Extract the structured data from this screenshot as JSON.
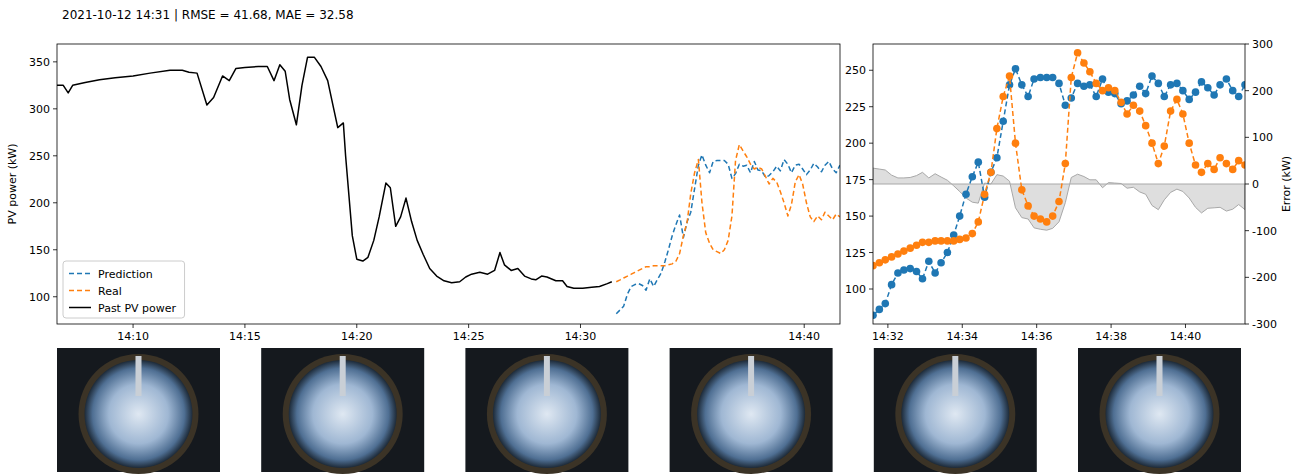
{
  "chart_data": [
    {
      "type": "line",
      "title": "2021-10-12 14:31 | RMSE = 41.68, MAE = 32.58",
      "y_label": "PV power (kW)",
      "xlim": [
        6.6,
        41.6
      ],
      "xticks": [
        {
          "value": 10,
          "label": "14:10"
        },
        {
          "value": 15,
          "label": "14:15"
        },
        {
          "value": 20,
          "label": "14:20"
        },
        {
          "value": 25,
          "label": "14:25"
        },
        {
          "value": 30,
          "label": "14:30"
        },
        {
          "value": 40,
          "label": "14:40"
        }
      ],
      "ylim": [
        71,
        369
      ],
      "yticks": [
        100,
        150,
        200,
        250,
        300,
        350
      ],
      "legend": "lower left",
      "x": [
        31.6,
        31.77,
        31.93,
        32.1,
        32.27,
        32.43,
        32.6,
        32.77,
        32.93,
        33.1,
        33.27,
        33.43,
        33.6,
        33.77,
        33.93,
        34.1,
        34.27,
        34.43,
        34.6,
        34.77,
        34.93,
        35.1,
        35.27,
        35.43,
        35.6,
        35.77,
        35.93,
        36.1,
        36.27,
        36.43,
        36.6,
        36.77,
        36.93,
        37.1,
        37.27,
        37.43,
        37.6,
        37.77,
        37.93,
        38.1,
        38.27,
        38.43,
        38.6,
        38.77,
        38.93,
        39.1,
        39.27,
        39.43,
        39.6,
        39.77,
        39.93,
        40.1,
        40.27,
        40.43,
        40.6,
        40.77,
        40.93,
        41.1,
        41.27,
        41.43,
        41.6
      ],
      "series": [
        {
          "name": "Prediction",
          "color": "#1f77b4",
          "line_style": "dashed",
          "values": [
            82,
            86,
            90,
            103,
            111,
            113,
            114,
            112,
            107,
            119,
            111,
            118,
            125,
            137,
            150,
            165,
            177,
            187,
            163,
            180,
            190,
            215,
            240,
            251,
            240,
            232,
            244,
            245,
            245,
            245,
            241,
            226,
            231,
            241,
            239,
            240,
            232,
            244,
            235,
            234,
            227,
            229,
            233,
            239,
            234,
            246,
            241,
            232,
            240,
            241,
            236,
            230,
            235,
            242,
            238,
            233,
            240,
            244,
            236,
            232,
            240
          ]
        },
        {
          "name": "Real",
          "color": "#ff7f0e",
          "line_style": "dashed",
          "values": [
            116,
            118,
            120,
            122,
            124,
            126,
            128,
            130,
            132,
            132,
            133,
            133,
            133,
            133,
            134,
            135,
            138,
            146,
            165,
            180,
            210,
            232,
            246,
            200,
            168,
            157,
            150,
            148,
            146,
            150,
            160,
            186,
            245,
            262,
            255,
            249,
            241,
            236,
            238,
            236,
            228,
            220,
            226,
            222,
            212,
            200,
            186,
            198,
            222,
            230,
            220,
            200,
            185,
            180,
            186,
            182,
            190,
            186,
            182,
            188,
            185
          ]
        },
        {
          "name": "Past PV power",
          "color": "#000000",
          "line_style": "solid",
          "x": [
            6.6,
            6.88,
            7.1,
            7.3,
            7.86,
            8.5,
            9.2,
            10.0,
            10.76,
            11.65,
            12.2,
            12.5,
            12.86,
            13.3,
            13.6,
            14.0,
            14.3,
            14.6,
            15.0,
            15.6,
            16.0,
            16.3,
            16.56,
            16.8,
            17.0,
            17.3,
            17.55,
            17.8,
            18.1,
            18.4,
            18.7,
            18.97,
            19.15,
            19.4,
            19.5,
            19.8,
            20.0,
            20.27,
            20.5,
            20.76,
            21.0,
            21.3,
            21.5,
            21.74,
            21.96,
            22.2,
            22.45,
            22.7,
            22.97,
            23.26,
            23.57,
            23.9,
            24.24,
            24.6,
            24.87,
            25.13,
            25.5,
            25.85,
            26.16,
            26.4,
            26.6,
            26.9,
            27.2,
            27.5,
            27.8,
            28.0,
            28.26,
            28.5,
            28.9,
            29.2,
            29.4,
            29.7,
            30.1,
            30.5,
            30.85,
            31.2,
            31.4
          ],
          "values": [
            325,
            325,
            317,
            325,
            328,
            331,
            333,
            335,
            338,
            341,
            341,
            339,
            338,
            304,
            312,
            335,
            330,
            343,
            344,
            345,
            345,
            330,
            347,
            340,
            310,
            283,
            325,
            355,
            355,
            345,
            330,
            300,
            280,
            285,
            250,
            165,
            140,
            138,
            142,
            160,
            185,
            221,
            216,
            175,
            185,
            205,
            180,
            160,
            145,
            130,
            122,
            117,
            115,
            116,
            121,
            124,
            126,
            124,
            128,
            147,
            134,
            128,
            130,
            122,
            119,
            118,
            122,
            121,
            117,
            117,
            111,
            109,
            109,
            110,
            111,
            114,
            116
          ]
        }
      ]
    },
    {
      "type": "line",
      "y2_label": "Error (kW)",
      "xlim": [
        31.6,
        41.6
      ],
      "xticks": [
        {
          "value": 32,
          "label": "14:32"
        },
        {
          "value": 34,
          "label": "14:34"
        },
        {
          "value": 36,
          "label": "14:36"
        },
        {
          "value": 38,
          "label": "14:38"
        },
        {
          "value": 40,
          "label": "14:40"
        }
      ],
      "ylim": [
        76,
        268
      ],
      "yticks": [
        100,
        125,
        150,
        175,
        200,
        225,
        250
      ],
      "y2lim": [
        -300,
        300
      ],
      "y2ticks": [
        -300,
        -200,
        -100,
        0,
        100,
        200,
        300
      ],
      "x": [
        31.6,
        31.77,
        31.93,
        32.1,
        32.27,
        32.43,
        32.6,
        32.77,
        32.93,
        33.1,
        33.27,
        33.43,
        33.6,
        33.77,
        33.93,
        34.1,
        34.27,
        34.43,
        34.6,
        34.77,
        34.93,
        35.1,
        35.27,
        35.43,
        35.6,
        35.77,
        35.93,
        36.1,
        36.27,
        36.43,
        36.6,
        36.77,
        36.93,
        37.1,
        37.27,
        37.43,
        37.6,
        37.77,
        37.93,
        38.1,
        38.27,
        38.43,
        38.6,
        38.77,
        38.93,
        39.1,
        39.27,
        39.43,
        39.6,
        39.77,
        39.93,
        40.1,
        40.27,
        40.43,
        40.6,
        40.77,
        40.93,
        41.1,
        41.27,
        41.43,
        41.6
      ],
      "series": [
        {
          "type": "area",
          "axis": "y2",
          "color": "#d3d3d3",
          "values": [
            34,
            32,
            30,
            19,
            13,
            13,
            14,
            18,
            25,
            13,
            22,
            15,
            8,
            -4,
            -16,
            -30,
            -39,
            -41,
            2,
            0,
            20,
            17,
            6,
            -51,
            -72,
            -75,
            -94,
            -97,
            -99,
            -95,
            -81,
            -40,
            14,
            21,
            16,
            9,
            9,
            -8,
            3,
            2,
            1,
            -9,
            -7,
            -17,
            -22,
            -46,
            -55,
            -34,
            -18,
            -11,
            -16,
            -30,
            -50,
            -62,
            -52,
            -51,
            -50,
            -58,
            -54,
            -44,
            -55
          ]
        },
        {
          "color": "#1f77b4",
          "line_style": "dashed",
          "marker": "circle",
          "values": [
            82,
            86,
            90,
            103,
            111,
            113,
            114,
            112,
            107,
            119,
            111,
            118,
            125,
            137,
            150,
            165,
            177,
            187,
            163,
            180,
            190,
            215,
            240,
            251,
            240,
            232,
            244,
            245,
            245,
            245,
            241,
            226,
            231,
            241,
            239,
            240,
            232,
            244,
            235,
            234,
            227,
            229,
            233,
            239,
            234,
            246,
            241,
            232,
            240,
            241,
            236,
            230,
            235,
            242,
            238,
            233,
            240,
            244,
            236,
            232,
            240
          ]
        },
        {
          "color": "#ff7f0e",
          "line_style": "dashed",
          "marker": "circle",
          "values": [
            116,
            118,
            120,
            122,
            124,
            126,
            128,
            130,
            132,
            132,
            133,
            133,
            133,
            133,
            134,
            135,
            138,
            146,
            165,
            180,
            210,
            232,
            246,
            200,
            168,
            157,
            150,
            148,
            146,
            150,
            160,
            186,
            245,
            262,
            255,
            249,
            241,
            236,
            238,
            236,
            228,
            220,
            226,
            222,
            212,
            200,
            186,
            198,
            222,
            230,
            220,
            200,
            185,
            180,
            186,
            182,
            190,
            186,
            182,
            188,
            185
          ]
        }
      ]
    }
  ]
}
